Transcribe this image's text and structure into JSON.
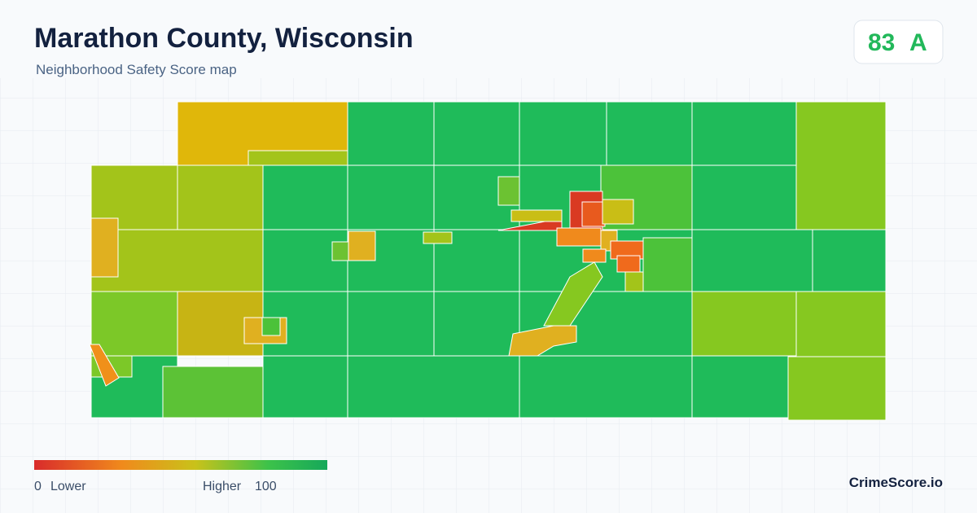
{
  "header": {
    "title": "Marathon County, Wisconsin",
    "subtitle": "Neighborhood Safety Score map"
  },
  "score": {
    "value": 83,
    "grade": "A"
  },
  "legend": {
    "min": 0,
    "min_label": "Lower",
    "max_label": "Higher",
    "max": 100
  },
  "footer": {
    "brand": "CrimeScore.io"
  }
}
